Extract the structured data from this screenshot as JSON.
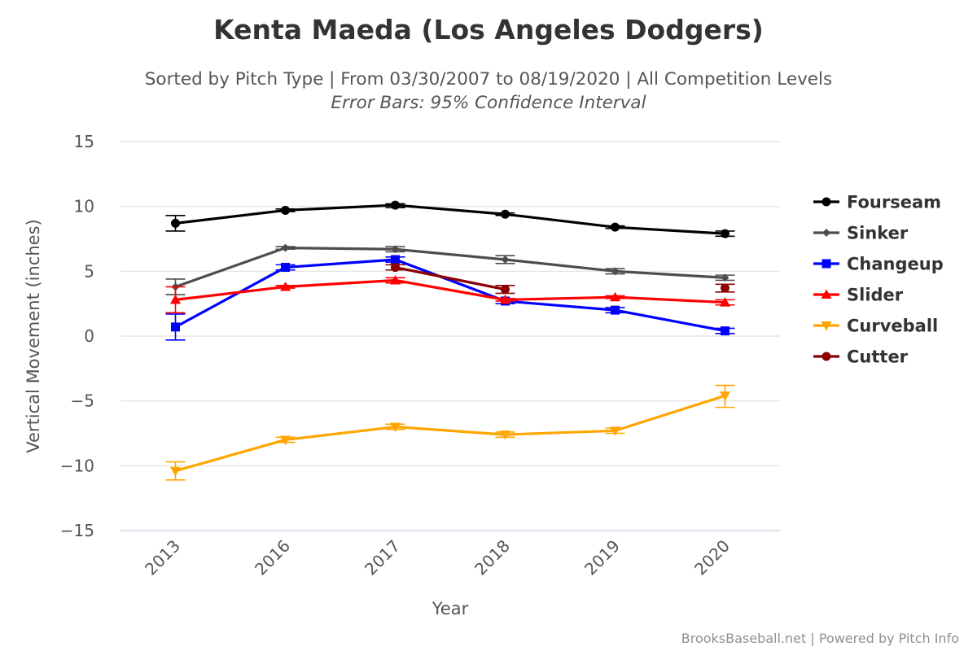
{
  "chart_data": {
    "type": "line",
    "title": "Kenta Maeda (Los Angeles Dodgers)",
    "subtitle": "Sorted by Pitch Type | From 03/30/2007 to 08/19/2020 | All Competition Levels",
    "subtitle2": "Error Bars: 95% Confidence Interval",
    "xlabel": "Year",
    "ylabel": "Vertical Movement (inches)",
    "categories": [
      "2013",
      "2016",
      "2017",
      "2018",
      "2019",
      "2020"
    ],
    "ylim": [
      -15,
      15
    ],
    "yticks": [
      15,
      10,
      5,
      0,
      -5,
      -10,
      -15
    ],
    "ytick_labels": [
      "15",
      "10",
      "5",
      "0",
      "−5",
      "−10",
      "−15"
    ],
    "grid": true,
    "legend_position": "right",
    "series": [
      {
        "name": "Fourseam",
        "color": "#000000",
        "marker": "circle",
        "values": [
          8.7,
          9.7,
          10.1,
          9.4,
          8.4,
          7.9
        ],
        "err_low": [
          8.1,
          9.6,
          9.9,
          9.3,
          8.3,
          7.7
        ],
        "err_high": [
          9.3,
          9.8,
          10.2,
          9.5,
          8.5,
          8.1
        ]
      },
      {
        "name": "Sinker",
        "color": "#4d4d4d",
        "marker": "diamond",
        "values": [
          3.8,
          6.8,
          6.7,
          5.9,
          5.0,
          4.5
        ],
        "err_low": [
          3.2,
          6.7,
          6.5,
          5.6,
          4.8,
          4.3
        ],
        "err_high": [
          4.4,
          6.9,
          6.9,
          6.2,
          5.2,
          4.7
        ]
      },
      {
        "name": "Changeup",
        "color": "#0000ff",
        "marker": "square",
        "values": [
          0.7,
          5.3,
          5.9,
          2.7,
          2.0,
          0.4
        ],
        "err_low": [
          -0.3,
          5.1,
          5.7,
          2.5,
          1.8,
          0.2
        ],
        "err_high": [
          1.7,
          5.5,
          6.1,
          2.9,
          2.2,
          0.6
        ]
      },
      {
        "name": "Slider",
        "color": "#ff0000",
        "marker": "triangle",
        "values": [
          2.8,
          3.8,
          4.3,
          2.8,
          3.0,
          2.6
        ],
        "err_low": [
          1.8,
          3.7,
          4.1,
          2.7,
          2.9,
          2.4
        ],
        "err_high": [
          3.8,
          3.9,
          4.5,
          2.9,
          3.1,
          2.8
        ]
      },
      {
        "name": "Curveball",
        "color": "#ffa500",
        "marker": "triangle-down",
        "values": [
          -10.4,
          -8.0,
          -7.0,
          -7.6,
          -7.3,
          -4.6
        ],
        "err_low": [
          -11.1,
          -8.2,
          -7.2,
          -7.8,
          -7.5,
          -5.5
        ],
        "err_high": [
          -9.7,
          -7.8,
          -6.8,
          -7.4,
          -7.1,
          -3.8
        ]
      },
      {
        "name": "Cutter",
        "color": "#8b0000",
        "marker": "circle",
        "values": [
          null,
          null,
          5.3,
          3.6,
          null,
          3.7
        ],
        "err_low": [
          null,
          null,
          5.1,
          3.3,
          null,
          3.4
        ],
        "err_high": [
          null,
          null,
          5.5,
          3.9,
          null,
          4.0
        ]
      }
    ],
    "credits": "BrooksBaseball.net | Powered by Pitch Info"
  }
}
